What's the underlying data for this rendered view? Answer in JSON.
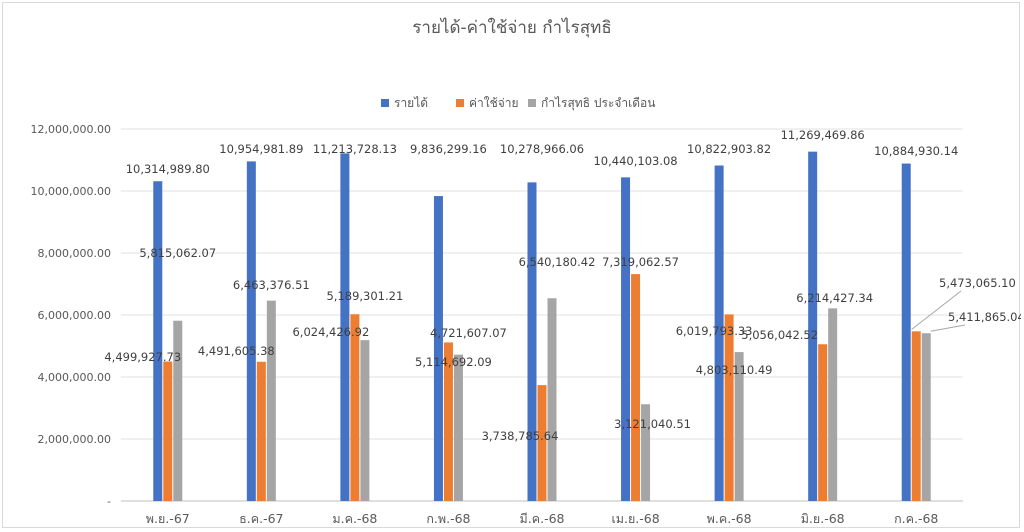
{
  "chart_data": {
    "type": "bar",
    "title": "รายได้-ค่าใช้จ่าย กำไรสุทธิ",
    "categories": [
      "พ.ย.-67",
      "ธ.ค.-67",
      "ม.ค.-68",
      "ก.พ.-68",
      "มี.ค.-68",
      "เม.ย.-68",
      "พ.ค.-68",
      "มิ.ย.-68",
      "ก.ค.-68"
    ],
    "series": [
      {
        "name": "รายได้",
        "color": "#4472c4",
        "values": [
          10314989.8,
          10954981.89,
          11213728.13,
          9836299.16,
          10278966.06,
          10440103.08,
          10822903.82,
          11269469.86,
          10884930.14
        ],
        "labels": [
          "10,314,989.80",
          "10,954,981.89",
          "11,213,728.13",
          "9,836,299.16",
          "10,278,966.06",
          "10,440,103.08",
          "10,822,903.82",
          "11,269,469.86",
          "10,884,930.14"
        ]
      },
      {
        "name": "ค่าใช้จ่าย",
        "color": "#ed7d31",
        "values": [
          4499927.73,
          4491605.38,
          6024426.92,
          5114692.09,
          3738785.64,
          7319062.57,
          6019793.33,
          5056042.52,
          5473065.1
        ],
        "labels": [
          "4,499,927.73",
          "4,491,605.38",
          "6,024,426.92",
          "5,114,692.09",
          "3,738,785.64",
          "7,319,062.57",
          "6,019,793.33",
          "5,056,042.52",
          "5,473,065.10"
        ]
      },
      {
        "name": "กำไรสุทธิ ประจำเดือน",
        "color": "#a5a5a5",
        "values": [
          5815062.07,
          6463376.51,
          5189301.21,
          4721607.07,
          6540180.42,
          3121040.51,
          4803110.49,
          6214427.34,
          5411865.04
        ],
        "labels": [
          "5,815,062.07",
          "6,463,376.51",
          "5,189,301.21",
          "4,721,607.07",
          "6,540,180.42",
          "3,121,040.51",
          "4,803,110.49",
          "6,214,427.34",
          "5,411,865.04"
        ]
      }
    ],
    "y_ticks": [
      "-",
      "2,000,000.00",
      "4,000,000.00",
      "6,000,000.00",
      "8,000,000.00",
      "10,000,000.00",
      "12,000,000.00"
    ],
    "ylim": [
      0,
      12000000
    ],
    "grid": true,
    "legend_position": "top-center"
  }
}
